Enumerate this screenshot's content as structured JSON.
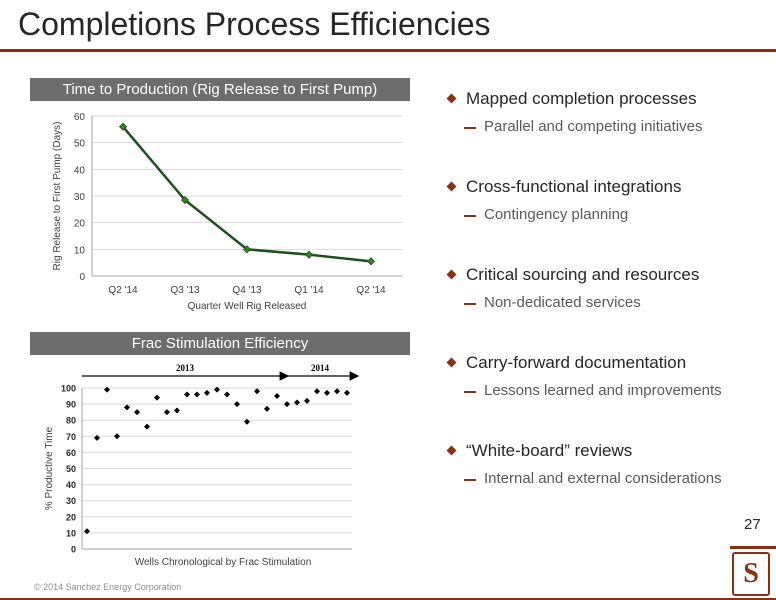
{
  "slide": {
    "title": "Completions Process Efficiencies",
    "page_number": "27",
    "copyright": "© 2014 Sanchez Energy Corporation",
    "logo_letter": "S",
    "accent_color": "#8b2e16"
  },
  "panels": {
    "top_header": "Time to Production (Rig Release to First Pump)",
    "bottom_header": "Frac Stimulation Efficiency"
  },
  "bullets": [
    {
      "main": "Mapped completion processes",
      "sub": "Parallel and competing initiatives"
    },
    {
      "main": "Cross-functional integrations",
      "sub": "Contingency planning"
    },
    {
      "main": "Critical sourcing and resources",
      "sub": "Non-dedicated services"
    },
    {
      "main": "Carry-forward documentation",
      "sub": "Lessons learned and improvements"
    },
    {
      "main": "“White-board” reviews",
      "sub": "Internal and external considerations"
    }
  ],
  "chart_data": [
    {
      "type": "line",
      "categories": [
        "Q2 '14",
        "Q3 '13",
        "Q4 '13",
        "Q1 '14",
        "Q2 '14"
      ],
      "series": [
        {
          "values": [
            56,
            28.5,
            10,
            8,
            5.5
          ]
        }
      ],
      "xlabel": "Quarter Well Rig Released",
      "ylabel": "Rig Release to First Pump (Days)",
      "ylim": [
        0,
        60
      ],
      "yticks": [
        0,
        10,
        20,
        30,
        40,
        50,
        60
      ],
      "grid": true,
      "line_color": "#1e4d1e",
      "marker_color": "#3a7d2a"
    },
    {
      "type": "scatter",
      "x": [
        1,
        2,
        3,
        4,
        5,
        6,
        7,
        8,
        9,
        10,
        11,
        12,
        13,
        14,
        15,
        16,
        17,
        18,
        19,
        20,
        21,
        22,
        23,
        24,
        25,
        26,
        27
      ],
      "y": [
        11,
        69,
        99,
        70,
        88,
        85,
        76,
        94,
        85,
        86,
        96,
        96,
        97,
        99,
        96,
        90,
        79,
        98,
        87,
        95,
        90,
        91,
        92,
        98,
        97,
        98,
        97
      ],
      "xlabel": "Wells Chronological by Frac Stimulation",
      "ylabel": "% Productive Time",
      "ylim": [
        0,
        100
      ],
      "yticks": [
        0,
        10,
        20,
        30,
        40,
        50,
        60,
        70,
        80,
        90,
        100
      ],
      "grid": true,
      "marker_color": "#000000",
      "annotations": [
        {
          "label": "2013",
          "x_start": 0,
          "x_end": 20
        },
        {
          "label": "2014",
          "x_start": 20,
          "x_end": 27
        }
      ]
    }
  ]
}
